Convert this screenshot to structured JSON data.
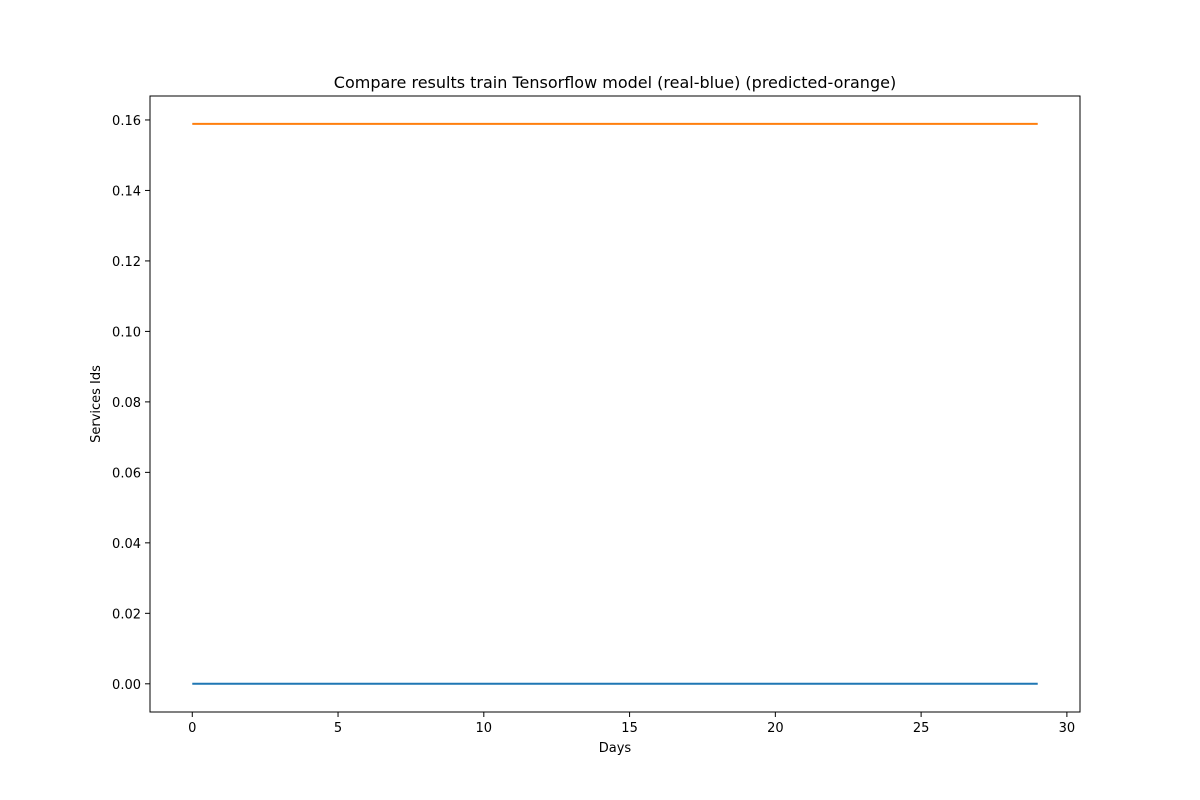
{
  "chart_data": {
    "type": "line",
    "title": "Compare results train Tensorflow model (real-blue) (predicted-orange)",
    "xlabel": "Days",
    "ylabel": "Services Ids",
    "xlim": [
      -1.45,
      30.45
    ],
    "ylim": [
      -0.008,
      0.1668
    ],
    "x_ticks": [
      0,
      5,
      10,
      15,
      20,
      25,
      30
    ],
    "x_tick_labels": [
      "0",
      "5",
      "10",
      "15",
      "20",
      "25",
      "30"
    ],
    "y_ticks": [
      0.0,
      0.02,
      0.04,
      0.06,
      0.08,
      0.1,
      0.12,
      0.14,
      0.16
    ],
    "y_tick_labels": [
      "0.00",
      "0.02",
      "0.04",
      "0.06",
      "0.08",
      "0.10",
      "0.12",
      "0.14",
      "0.16"
    ],
    "grid": false,
    "x": [
      0,
      29
    ],
    "series": [
      {
        "values": [
          0.0,
          0.0
        ],
        "color": "#1f77b4"
      },
      {
        "values": [
          0.1589,
          0.1589
        ],
        "color": "#ff7f0e"
      }
    ]
  }
}
